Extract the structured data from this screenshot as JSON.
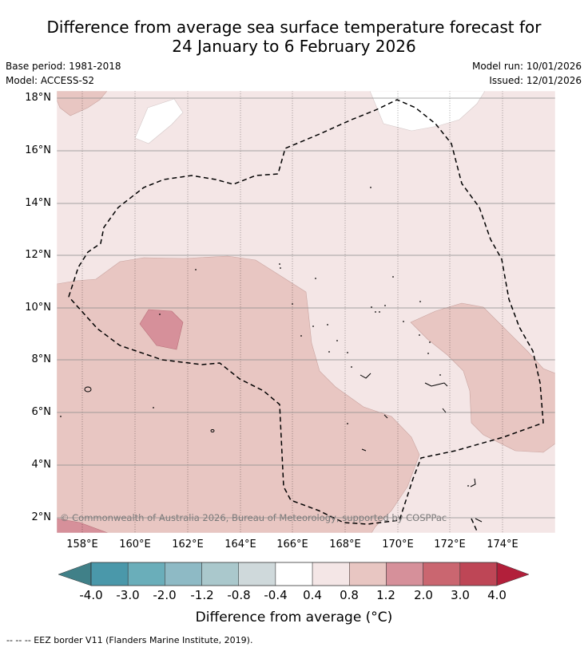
{
  "header": {
    "title_line1": "Difference from average sea surface temperature forecast for",
    "title_line2": "24 January to 6 February 2026",
    "base_period": "Base period: 1981-2018",
    "model": "Model: ACCESS-S2",
    "model_run": "Model run: 10/01/2026",
    "issued": "Issued: 12/01/2026"
  },
  "map": {
    "lat_labels": [
      "18°N",
      "16°N",
      "14°N",
      "12°N",
      "10°N",
      "8°N",
      "6°N",
      "4°N",
      "2°N"
    ],
    "lon_labels": [
      "158°E",
      "160°E",
      "162°E",
      "164°E",
      "166°E",
      "168°E",
      "170°E",
      "172°E",
      "174°E"
    ],
    "copyright": "© Commonwealth of Australia 2026, Bureau of Meteorology, supported by COSPPac"
  },
  "colorbar": {
    "labels": [
      "-4.0",
      "-3.0",
      "-2.0",
      "-1.2",
      "-0.8",
      "-0.4",
      "0.4",
      "0.8",
      "1.2",
      "2.0",
      "3.0",
      "4.0"
    ],
    "colors": [
      "#4a98aa",
      "#6aaeba",
      "#8ebac5",
      "#aac8cc",
      "#cfd9db",
      "#ffffff",
      "#f4e6e6",
      "#e8c6c2",
      "#d6909a",
      "#ca6670",
      "#be4656"
    ],
    "under_color": "#408088",
    "over_color": "#b21f3a",
    "title": "Difference from average (°C)"
  },
  "footnote": "-- -- -- EEZ border V11 (Flanders Marine Institute, 2019)."
}
